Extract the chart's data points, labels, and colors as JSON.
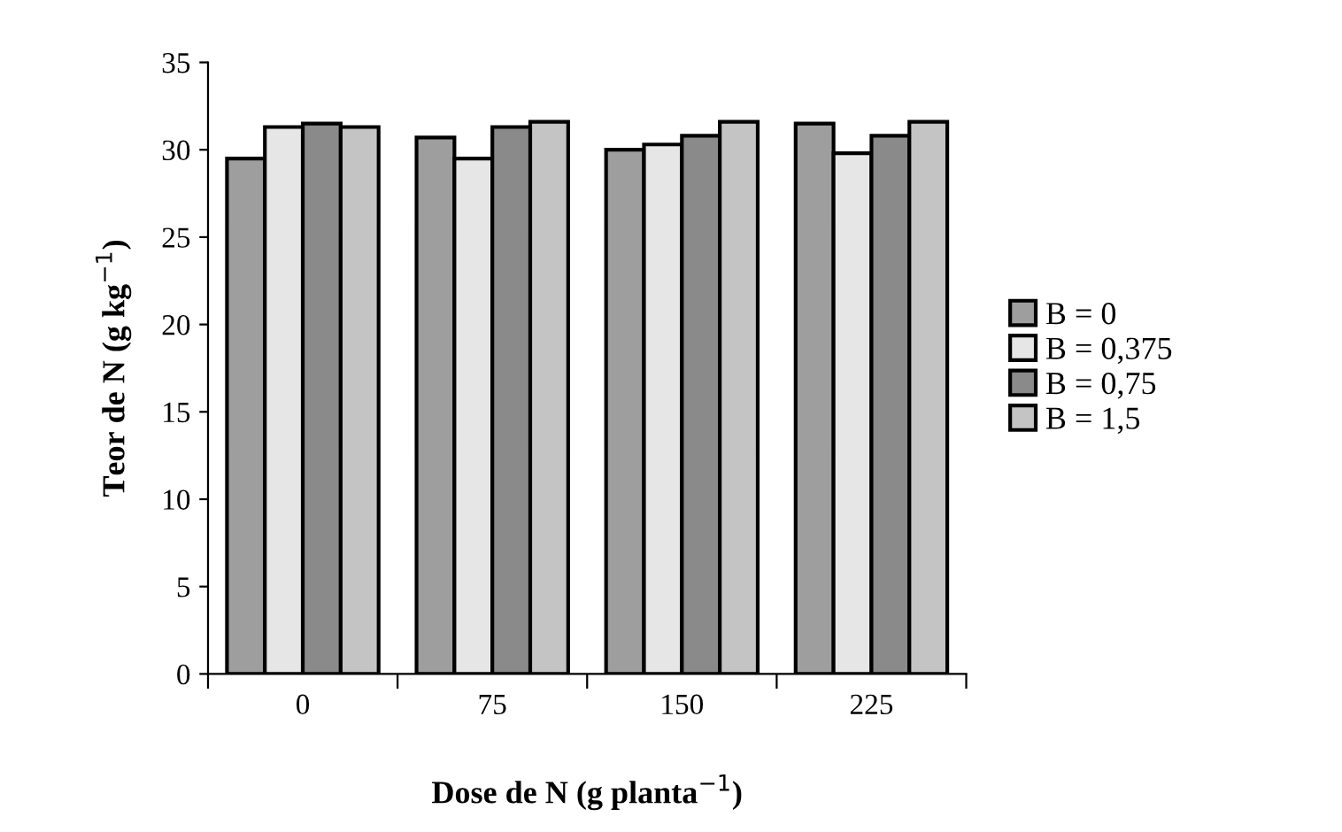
{
  "chart_data": {
    "type": "bar",
    "xlabel": "Dose de N (g planta$^{−1}$)",
    "ylabel": "Teor de N (g kg$^{−1}$)",
    "categories": [
      "0",
      "75",
      "150",
      "225"
    ],
    "series": [
      {
        "name": "B = 0",
        "color": "#9e9e9e",
        "values": [
          29.5,
          30.7,
          30.0,
          31.5
        ]
      },
      {
        "name": "B = 0,375",
        "color": "#e6e6e6",
        "values": [
          31.3,
          29.5,
          30.3,
          29.8
        ]
      },
      {
        "name": "B = 0,75",
        "color": "#8a8a8a",
        "values": [
          31.5,
          31.3,
          30.8,
          30.8
        ]
      },
      {
        "name": "B = 1,5",
        "color": "#c4c4c4",
        "values": [
          31.3,
          31.6,
          31.6,
          31.6
        ]
      }
    ],
    "ylim": [
      0,
      35
    ],
    "yticks": [
      0,
      5,
      10,
      15,
      20,
      25,
      30,
      35
    ],
    "grid": false,
    "legend": "right"
  }
}
